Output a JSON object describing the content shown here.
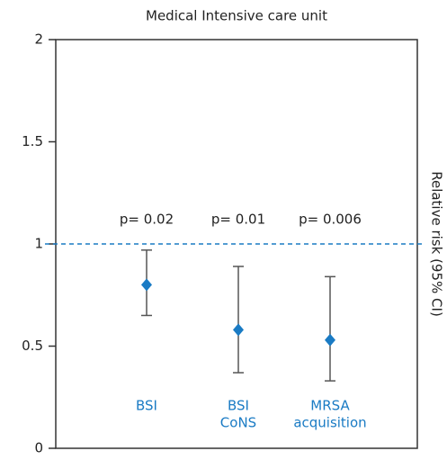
{
  "chart_data": {
    "type": "errorbar",
    "title": "Medical Intensive care unit",
    "y_label": "Relative risk (95% CI)",
    "categories": [
      [
        "BSI"
      ],
      [
        "BSI",
        "CoNS"
      ],
      [
        "MRSA",
        "acquisition"
      ]
    ],
    "series": [
      {
        "color": "#1a7bc4",
        "values": [
          0.8,
          0.58,
          0.53
        ],
        "lower": [
          0.65,
          0.37,
          0.33
        ],
        "upper": [
          0.97,
          0.89,
          0.84
        ]
      }
    ],
    "annotations": [
      "p= 0.02",
      "p= 0.01",
      "p= 0.006"
    ],
    "reference_line": 1,
    "ylim": [
      0,
      2
    ],
    "yticks": [
      0,
      0.5,
      1,
      1.5,
      2
    ]
  }
}
